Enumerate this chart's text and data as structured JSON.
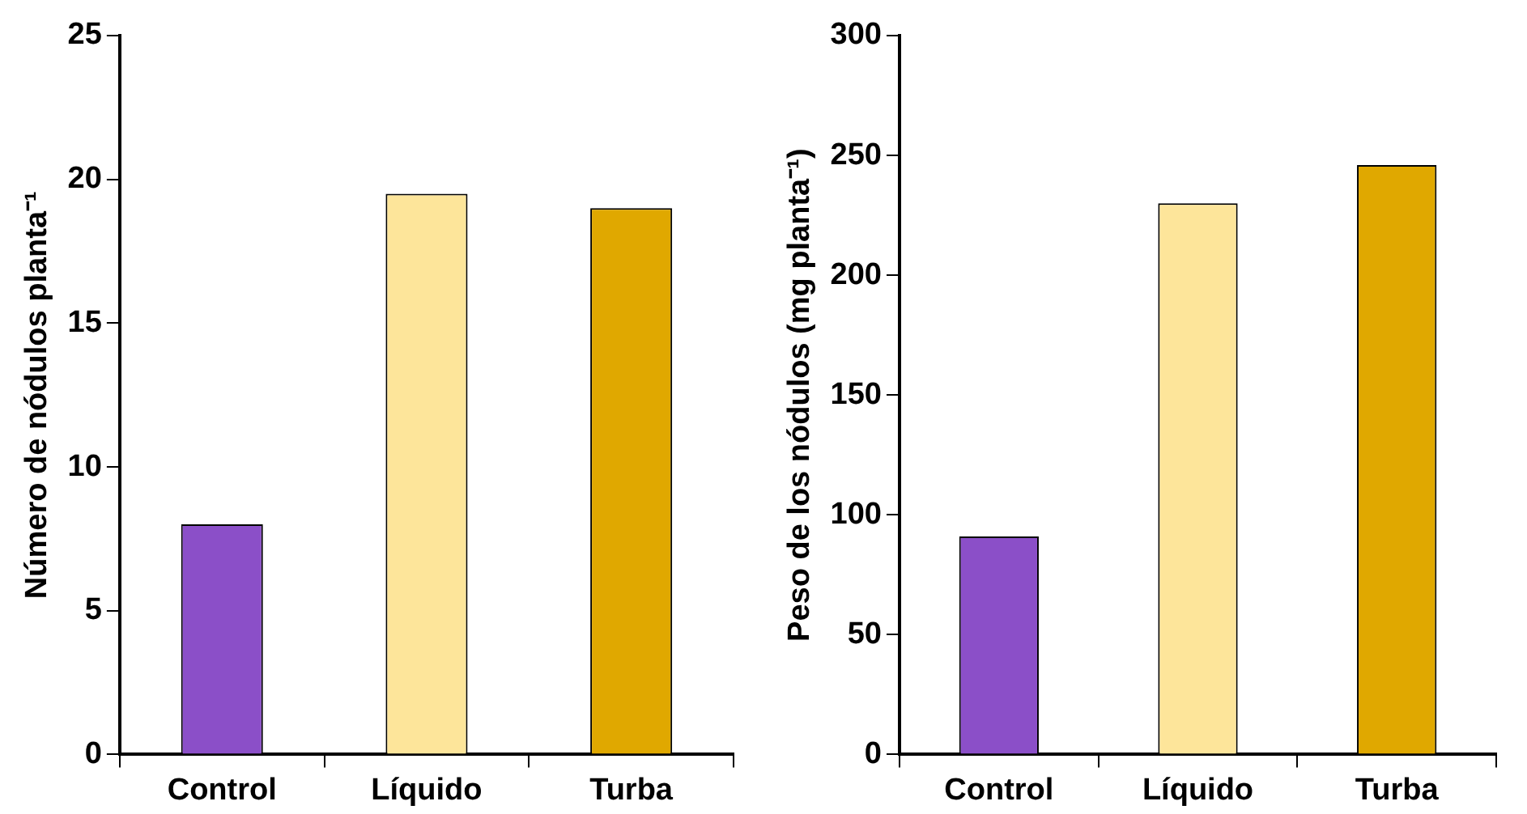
{
  "chart_data": [
    {
      "type": "bar",
      "ylabel": "Número de nódulos planta⁻¹",
      "categories": [
        "Control",
        "Líquido",
        "Turba"
      ],
      "values": [
        8,
        19.5,
        19
      ],
      "colors": [
        "#8b4fc8",
        "#fde59a",
        "#e0a800"
      ],
      "ylim": [
        0,
        25
      ],
      "yticks": [
        0,
        5,
        10,
        15,
        20,
        25
      ]
    },
    {
      "type": "bar",
      "ylabel": "Peso de los nódulos (mg planta⁻¹)",
      "categories": [
        "Control",
        "Líquido",
        "Turba"
      ],
      "values": [
        91,
        230,
        246
      ],
      "colors": [
        "#8b4fc8",
        "#fde59a",
        "#e0a800"
      ],
      "ylim": [
        0,
        300
      ],
      "yticks": [
        0,
        50,
        100,
        150,
        200,
        250,
        300
      ]
    }
  ]
}
